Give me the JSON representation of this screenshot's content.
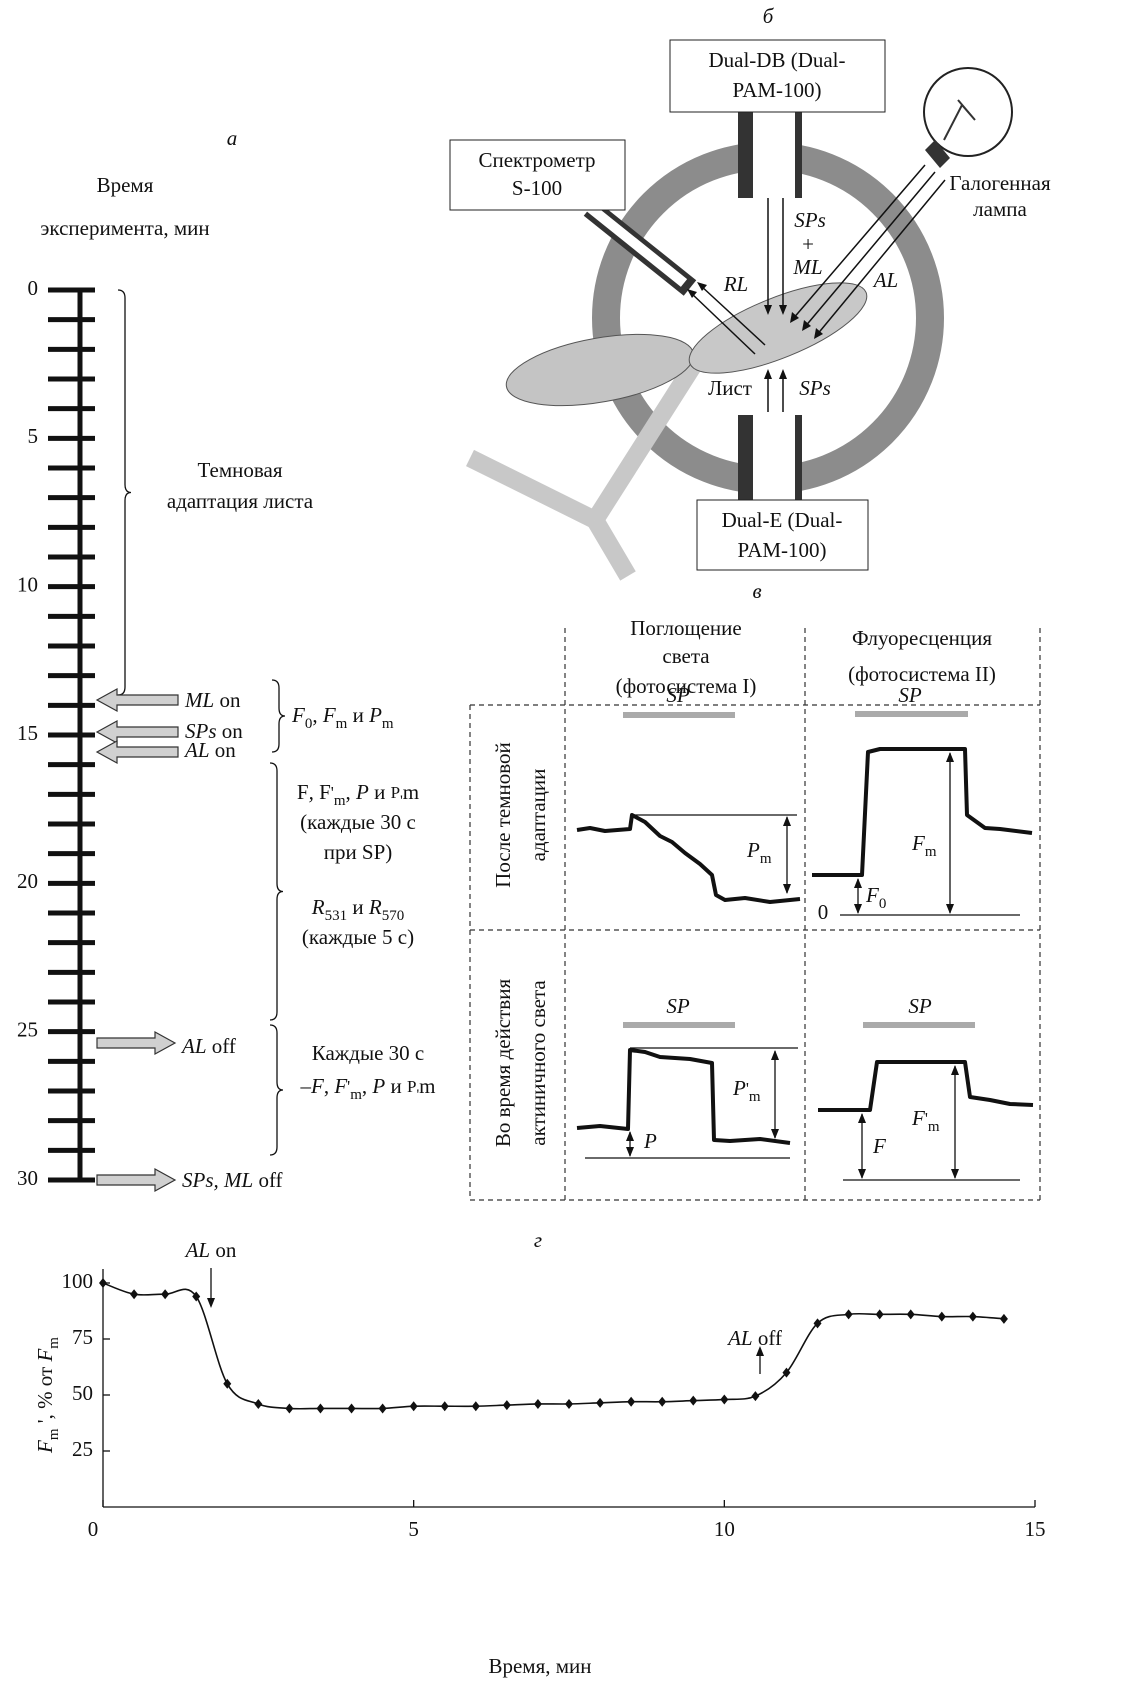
{
  "panel_a": {
    "letter": "а",
    "heading": [
      "Время",
      "эксперимента, мин"
    ],
    "axis": {
      "ticks": [
        0,
        1,
        2,
        3,
        4,
        5,
        6,
        7,
        8,
        9,
        10,
        11,
        12,
        13,
        14,
        15,
        16,
        17,
        18,
        19,
        20,
        21,
        22,
        23,
        24,
        25,
        26,
        27,
        28,
        29,
        30
      ],
      "labels": [
        0,
        5,
        10,
        15,
        20,
        25,
        30
      ]
    },
    "dark_adaptation": [
      "Темновая",
      "адаптация листа"
    ],
    "events": [
      [
        "ML",
        " on"
      ],
      [
        "SPs",
        " on"
      ],
      [
        "AL",
        " on"
      ],
      [
        "AL",
        " off"
      ],
      [
        "SPs, ML",
        " off"
      ]
    ],
    "measure_1": [
      "F",
      "0",
      ", ",
      "F",
      "m",
      " и ",
      "P",
      "m"
    ],
    "measure_2": [
      [
        "F",
        ", ",
        "F",
        "'",
        "m",
        ", ",
        "P",
        " и ",
        "P",
        "'",
        "m"
      ],
      [
        "(каждые 30 с"
      ],
      [
        "при SP)"
      ],
      [
        "R",
        "531",
        " и ",
        "R",
        "570"
      ],
      [
        "(каждые 5 с)"
      ]
    ],
    "measure_3": [
      [
        "Каждые 30 с"
      ],
      [
        "–",
        "F",
        ", ",
        "F",
        "'",
        "m",
        ", ",
        "P",
        " и ",
        "P",
        "'",
        "m"
      ]
    ]
  },
  "panel_b": {
    "letter": "б",
    "box_top": [
      "Dual-DB (Dual-",
      "PAM-100)"
    ],
    "box_bottom": [
      "Dual-E (Dual-",
      "PAM-100)"
    ],
    "spectrometer": [
      "Спектрометр",
      "S-100"
    ],
    "lamp": [
      "Галогенная",
      "лампа"
    ],
    "beam_top": [
      "SPs",
      "+",
      "ML"
    ],
    "rl": "RL",
    "al": "AL",
    "beam_bottom": "SPs",
    "leaf": "Лист"
  },
  "panel_c": {
    "letter": "в",
    "columns": [
      [
        "Поглощение",
        "света",
        "(фотосистема I)"
      ],
      [
        "Флуоресценция",
        "(фотосистема II)"
      ]
    ],
    "rows": [
      [
        "После темновой",
        "адаптации"
      ],
      [
        "Во время действия",
        "актиничного света"
      ]
    ],
    "sp": [
      "SP",
      "SP",
      "SP",
      "SP"
    ],
    "pm": [
      "P",
      "m"
    ],
    "fm": [
      "F",
      "m"
    ],
    "f0": [
      "F",
      "0"
    ],
    "zero": "0",
    "pm2": [
      "P",
      "'",
      "m"
    ],
    "p": "P",
    "f": "F",
    "fm2": [
      "F",
      "'",
      "m"
    ]
  },
  "chart_data": {
    "type": "line",
    "panel": "г",
    "x": [
      0,
      0.5,
      1,
      1.5,
      2,
      2.5,
      3,
      3.5,
      4,
      4.5,
      5,
      5.5,
      6,
      6.5,
      7,
      7.5,
      8,
      8.5,
      9,
      9.5,
      10,
      10.5,
      11,
      11.5,
      12,
      12.5,
      13,
      13.5,
      14,
      14.5
    ],
    "series": [
      {
        "color": "#111111",
        "values": [
          100,
          95,
          95,
          94,
          55,
          46,
          44,
          44,
          44,
          44,
          45,
          45,
          45,
          45.5,
          46,
          46,
          46.5,
          47,
          47,
          47.5,
          48,
          49.5,
          60,
          82,
          86,
          86,
          86,
          85,
          85,
          84
        ]
      }
    ],
    "xlim": [
      0,
      15
    ],
    "ylim": [
      0,
      100
    ],
    "xticks": [
      0,
      5,
      10,
      15
    ],
    "yticks": [
      25,
      50,
      75,
      100
    ],
    "xlabel": "Время, мин",
    "ylabel": [
      "F",
      "m",
      " ', % от ",
      "F",
      "m"
    ],
    "annotations": [
      [
        "AL",
        " on"
      ],
      [
        "AL",
        " off"
      ]
    ]
  }
}
